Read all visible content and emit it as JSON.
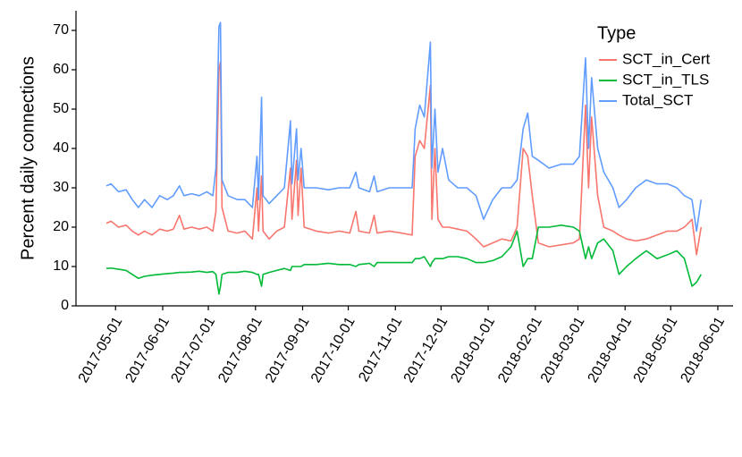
{
  "chart_data": {
    "type": "line",
    "y_label": "Percent daily connections",
    "legend_title": "Type",
    "legend_position": "top-right",
    "grid": false,
    "xlim": [
      "2017-04-05",
      "2018-06-11"
    ],
    "xticks": [
      "2017-05-01",
      "2017-06-01",
      "2017-07-01",
      "2017-08-01",
      "2017-09-01",
      "2017-10-01",
      "2017-11-01",
      "2017-12-01",
      "2018-01-01",
      "2018-02-01",
      "2018-03-01",
      "2018-04-01",
      "2018-05-01",
      "2018-06-01"
    ],
    "ylim": [
      0,
      75
    ],
    "yticks": [
      0,
      10,
      20,
      30,
      40,
      50,
      60,
      70
    ],
    "x": [
      "2017-04-25",
      "2017-04-28",
      "2017-05-03",
      "2017-05-08",
      "2017-05-12",
      "2017-05-16",
      "2017-05-20",
      "2017-05-25",
      "2017-05-30",
      "2017-06-04",
      "2017-06-08",
      "2017-06-12",
      "2017-06-15",
      "2017-06-20",
      "2017-06-25",
      "2017-06-30",
      "2017-07-04",
      "2017-07-06",
      "2017-07-08",
      "2017-07-09",
      "2017-07-10",
      "2017-07-14",
      "2017-07-20",
      "2017-07-25",
      "2017-07-30",
      "2017-08-02",
      "2017-08-03",
      "2017-08-05",
      "2017-08-06",
      "2017-08-10",
      "2017-08-15",
      "2017-08-20",
      "2017-08-24",
      "2017-08-25",
      "2017-08-28",
      "2017-08-29",
      "2017-08-31",
      "2017-09-02",
      "2017-09-10",
      "2017-09-18",
      "2017-09-25",
      "2017-10-02",
      "2017-10-06",
      "2017-10-08",
      "2017-10-15",
      "2017-10-18",
      "2017-10-20",
      "2017-10-28",
      "2017-11-05",
      "2017-11-12",
      "2017-11-14",
      "2017-11-17",
      "2017-11-20",
      "2017-11-24",
      "2017-11-25",
      "2017-11-27",
      "2017-11-29",
      "2017-12-02",
      "2017-12-06",
      "2017-12-12",
      "2017-12-18",
      "2017-12-24",
      "2017-12-29",
      "2018-01-04",
      "2018-01-10",
      "2018-01-16",
      "2018-01-20",
      "2018-01-24",
      "2018-01-27",
      "2018-01-30",
      "2018-02-03",
      "2018-02-10",
      "2018-02-18",
      "2018-02-26",
      "2018-03-02",
      "2018-03-06",
      "2018-03-08",
      "2018-03-10",
      "2018-03-14",
      "2018-03-18",
      "2018-03-24",
      "2018-03-28",
      "2018-04-02",
      "2018-04-08",
      "2018-04-15",
      "2018-04-22",
      "2018-04-29",
      "2018-05-05",
      "2018-05-10",
      "2018-05-15",
      "2018-05-18",
      "2018-05-21"
    ],
    "series": [
      {
        "name": "SCT_in_Cert",
        "color": "#F8766D",
        "values": [
          21,
          21.5,
          20,
          20.5,
          19,
          18,
          19,
          18,
          19.5,
          19,
          19.5,
          23,
          19.5,
          20,
          19.5,
          20,
          19,
          24,
          60,
          62,
          25,
          19,
          18.5,
          19,
          17,
          30,
          19,
          33,
          19,
          17,
          19,
          20,
          35,
          22,
          37,
          23,
          35,
          20,
          19,
          18.5,
          19,
          18.5,
          24,
          19,
          18.5,
          23,
          18.5,
          19,
          18.5,
          18,
          38,
          42,
          40,
          56,
          22,
          40,
          22,
          20,
          20,
          19.5,
          19,
          17,
          15,
          16,
          17,
          16.5,
          20,
          40,
          38,
          28,
          16,
          15,
          15.5,
          16,
          17,
          51,
          30,
          48,
          28,
          20,
          19,
          18,
          17,
          16.5,
          17,
          18,
          19,
          19,
          20,
          22,
          13,
          20
        ]
      },
      {
        "name": "SCT_in_TLS",
        "color": "#00BA38",
        "values": [
          9.5,
          9.6,
          9.3,
          9,
          8,
          7,
          7.5,
          7.8,
          8,
          8.2,
          8.3,
          8.5,
          8.5,
          8.6,
          8.8,
          8.5,
          8.7,
          8,
          3,
          5,
          8,
          8.5,
          8.5,
          8.8,
          8.5,
          8,
          8,
          5,
          8,
          8.5,
          9,
          9.5,
          9,
          10,
          10,
          10,
          10,
          10.5,
          10.5,
          10.8,
          10.5,
          10.5,
          10,
          10.5,
          10.8,
          10,
          11,
          11,
          11,
          11,
          12,
          12,
          12.5,
          10,
          11,
          12,
          12,
          12,
          12.5,
          12.5,
          12,
          11,
          11,
          11.5,
          12.5,
          15,
          19,
          10,
          12,
          12,
          20,
          20,
          20.5,
          20,
          19,
          12,
          15,
          12,
          16,
          17,
          14,
          8,
          10,
          12,
          14,
          12,
          13,
          14,
          12,
          5,
          6,
          8
        ]
      },
      {
        "name": "Total_SCT",
        "color": "#619CFF",
        "values": [
          30.5,
          31,
          29,
          29.5,
          27,
          25,
          27,
          25,
          28,
          27,
          28,
          30.5,
          28,
          28.5,
          28,
          29,
          28,
          35,
          71,
          72,
          32,
          28,
          27,
          27,
          25,
          38,
          27,
          53,
          28,
          26,
          28,
          30,
          47,
          31,
          45,
          32,
          40,
          30,
          30,
          29.5,
          30,
          30,
          34,
          30,
          29,
          33,
          29,
          30,
          30,
          30,
          45,
          51,
          48,
          67,
          35,
          50,
          34,
          40,
          32,
          30,
          30,
          28,
          22,
          27,
          30,
          30,
          32,
          45,
          49,
          38,
          37,
          35,
          36,
          36,
          38,
          63,
          40,
          58,
          40,
          34,
          30,
          25,
          27,
          30,
          32,
          31,
          31,
          30,
          28,
          27,
          19,
          27
        ]
      }
    ]
  }
}
